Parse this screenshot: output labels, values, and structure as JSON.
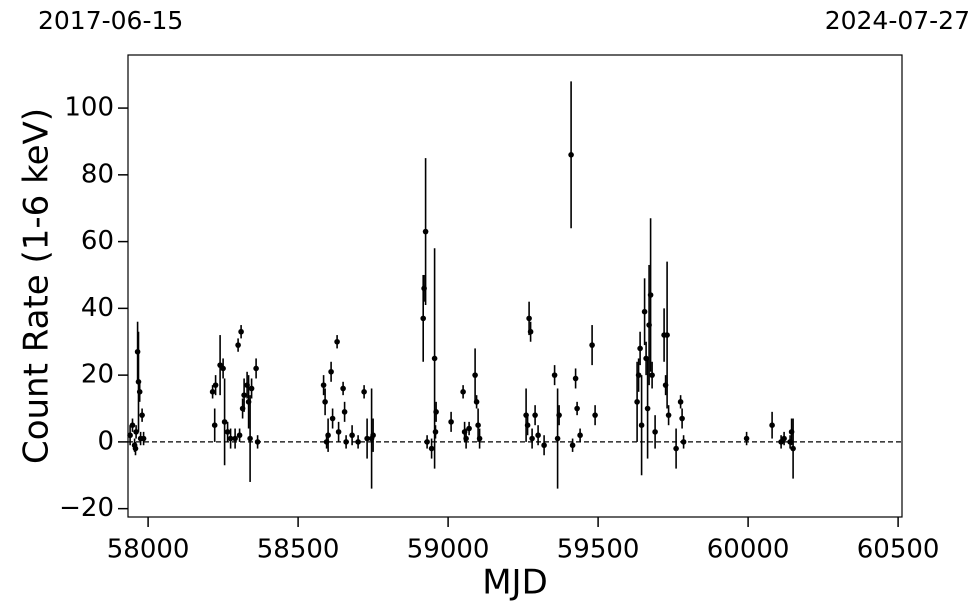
{
  "chart_data": {
    "type": "scatter",
    "top_left_label": "2017-06-15",
    "top_right_label": "2024-07-27",
    "xlabel": "MJD",
    "ylabel": "Count Rate (1-6 keV)",
    "xlim": [
      57933,
      60513
    ],
    "ylim": [
      -22.5,
      115.9
    ],
    "xticks": [
      58000,
      58500,
      59000,
      59500,
      60000,
      60500
    ],
    "yticks": [
      {
        "value": -20,
        "label": "−20"
      },
      0,
      20,
      40,
      60,
      80,
      100
    ],
    "hline": 0,
    "color": "#000000",
    "x": [
      57940,
      57948,
      57955,
      57958,
      57960,
      57965,
      57968,
      57972,
      57975,
      57980,
      57985,
      58215,
      58222,
      58225,
      58240,
      58250,
      58255,
      58265,
      58275,
      58290,
      58300,
      58305,
      58310,
      58315,
      58320,
      58330,
      58335,
      58340,
      58345,
      58360,
      58365,
      58585,
      58590,
      58595,
      58600,
      58610,
      58615,
      58630,
      58635,
      58650,
      58655,
      58660,
      58680,
      58700,
      58720,
      58730,
      58745,
      58750,
      58917,
      58920,
      58925,
      58930,
      58945,
      58955,
      58958,
      58960,
      59010,
      59050,
      59055,
      59060,
      59070,
      59090,
      59095,
      59100,
      59105,
      59260,
      59265,
      59270,
      59275,
      59280,
      59290,
      59300,
      59320,
      59355,
      59365,
      59370,
      59410,
      59415,
      59425,
      59430,
      59440,
      59480,
      59490,
      59630,
      59635,
      59640,
      59645,
      59655,
      59660,
      59665,
      59670,
      59675,
      59680,
      59690,
      59720,
      59725,
      59730,
      59735,
      59760,
      59775,
      59780,
      59785,
      59995,
      60080,
      60110,
      60120,
      60140,
      60145,
      60150
    ],
    "values": [
      2,
      5,
      -1,
      -2,
      3,
      27,
      18,
      15,
      1,
      8,
      1,
      15,
      5,
      17,
      23,
      22,
      6,
      3,
      1,
      1,
      29,
      2,
      33,
      10,
      14,
      17,
      12,
      1,
      16,
      22,
      0,
      17,
      12,
      0,
      2,
      21,
      7,
      30,
      3,
      16,
      9,
      0,
      2,
      0,
      15,
      1,
      1,
      2,
      37,
      46,
      63,
      0,
      -2,
      25,
      3,
      9,
      6,
      15,
      3,
      1,
      4,
      20,
      12,
      5,
      1,
      8,
      5,
      37,
      33,
      1,
      8,
      2,
      -1,
      20,
      1,
      8,
      86,
      -1,
      19,
      10,
      2,
      29,
      8,
      12,
      20,
      28,
      5,
      39,
      25,
      10,
      35,
      44,
      20,
      3,
      32,
      17,
      32,
      8,
      -2,
      12,
      7,
      0,
      1,
      5,
      0,
      1,
      0,
      3,
      -2
    ],
    "errors": [
      3,
      2,
      2,
      2,
      2,
      9,
      15,
      3,
      2,
      2,
      2,
      2,
      5,
      3,
      9,
      3,
      13,
      3,
      3,
      3,
      2,
      2,
      2,
      3,
      5,
      4,
      8,
      13,
      3,
      3,
      2,
      3,
      4,
      2,
      5,
      3,
      3,
      2,
      3,
      2,
      3,
      2,
      3,
      2,
      2,
      6,
      15,
      5,
      13,
      4,
      22,
      2,
      3,
      33,
      2,
      3,
      3,
      2,
      3,
      3,
      2,
      8,
      2,
      5,
      3,
      8,
      3,
      5,
      3,
      3,
      3,
      3,
      3,
      3,
      15,
      3,
      22,
      2,
      3,
      2,
      2,
      6,
      3,
      12,
      5,
      5,
      15,
      10,
      5,
      15,
      18,
      23,
      4,
      5,
      8,
      3,
      22,
      3,
      6,
      2,
      3,
      2,
      2,
      4,
      2,
      2,
      2,
      4,
      9
    ]
  }
}
